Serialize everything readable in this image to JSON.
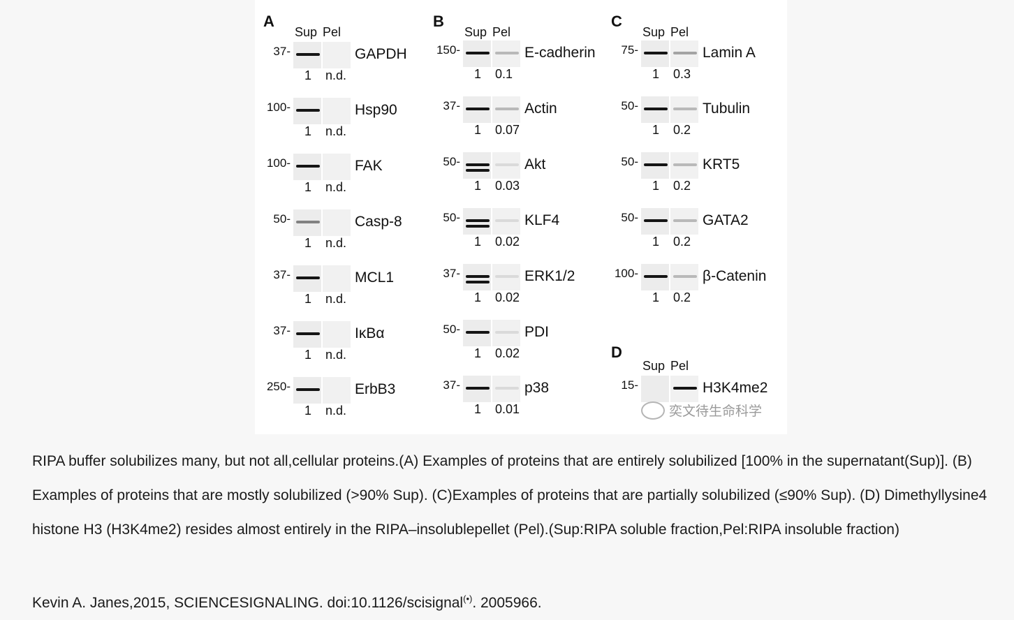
{
  "figure": {
    "lane_labels": {
      "sup": "Sup",
      "pel": "Pel"
    },
    "panels": [
      {
        "letter": "A",
        "rows": [
          {
            "protein": "GAPDH",
            "marker": "37",
            "sup": "1",
            "pel": "n.d."
          },
          {
            "protein": "Hsp90",
            "marker": "100",
            "sup": "1",
            "pel": "n.d."
          },
          {
            "protein": "FAK",
            "marker": "100",
            "sup": "1",
            "pel": "n.d."
          },
          {
            "protein": "Casp-8",
            "marker": "50",
            "sup": "1",
            "pel": "n.d."
          },
          {
            "protein": "MCL1",
            "marker": "37",
            "sup": "1",
            "pel": "n.d."
          },
          {
            "protein": "IκBα",
            "marker": "37",
            "sup": "1",
            "pel": "n.d."
          },
          {
            "protein": "ErbB3",
            "marker": "250",
            "sup": "1",
            "pel": "n.d."
          }
        ]
      },
      {
        "letter": "B",
        "rows": [
          {
            "protein": "E-cadherin",
            "marker": "150",
            "sup": "1",
            "pel": "0.1"
          },
          {
            "protein": "Actin",
            "marker": "37",
            "sup": "1",
            "pel": "0.07"
          },
          {
            "protein": "Akt",
            "marker": "50",
            "sup": "1",
            "pel": "0.03"
          },
          {
            "protein": "KLF4",
            "marker": "50",
            "sup": "1",
            "pel": "0.02"
          },
          {
            "protein": "ERK1/2",
            "marker": "37",
            "sup": "1",
            "pel": "0.02"
          },
          {
            "protein": "PDI",
            "marker": "50",
            "sup": "1",
            "pel": "0.02"
          },
          {
            "protein": "p38",
            "marker": "37",
            "sup": "1",
            "pel": "0.01"
          }
        ]
      },
      {
        "letter": "C",
        "rows": [
          {
            "protein": "Lamin A",
            "marker": "75",
            "sup": "1",
            "pel": "0.3"
          },
          {
            "protein": "Tubulin",
            "marker": "50",
            "sup": "1",
            "pel": "0.2"
          },
          {
            "protein": "KRT5",
            "marker": "50",
            "sup": "1",
            "pel": "0.2"
          },
          {
            "protein": "GATA2",
            "marker": "50",
            "sup": "1",
            "pel": "0.2"
          },
          {
            "protein": "β-Catenin",
            "marker": "100",
            "sup": "1",
            "pel": "0.2"
          }
        ]
      },
      {
        "letter": "D",
        "rows": [
          {
            "protein": "H3K4me2",
            "marker": "15"
          }
        ]
      }
    ],
    "watermark": "奕文待生命科学"
  },
  "caption": "RIPA buffer solubilizes many, but not all,cellular proteins.(A) Examples of proteins that are entirely solubilized [100% in the supernatant(Sup)]. (B) Examples of proteins that are mostly solubilized (>90% Sup). (C)Examples of proteins that are partially solubilized (≤90% Sup). (D) Dimethyllysine4 histone H3 (H3K4me2) resides almost entirely in the RIPA–insolublepellet (Pel).(Sup:RIPA soluble fraction,Pel:RIPA insoluble fraction)",
  "citation": {
    "text": "Kevin A. Janes,2015, SCIENCESIGNALING. doi:10.1126/scisignal",
    "mark": "(•)",
    "suffix": ". 2005966."
  }
}
